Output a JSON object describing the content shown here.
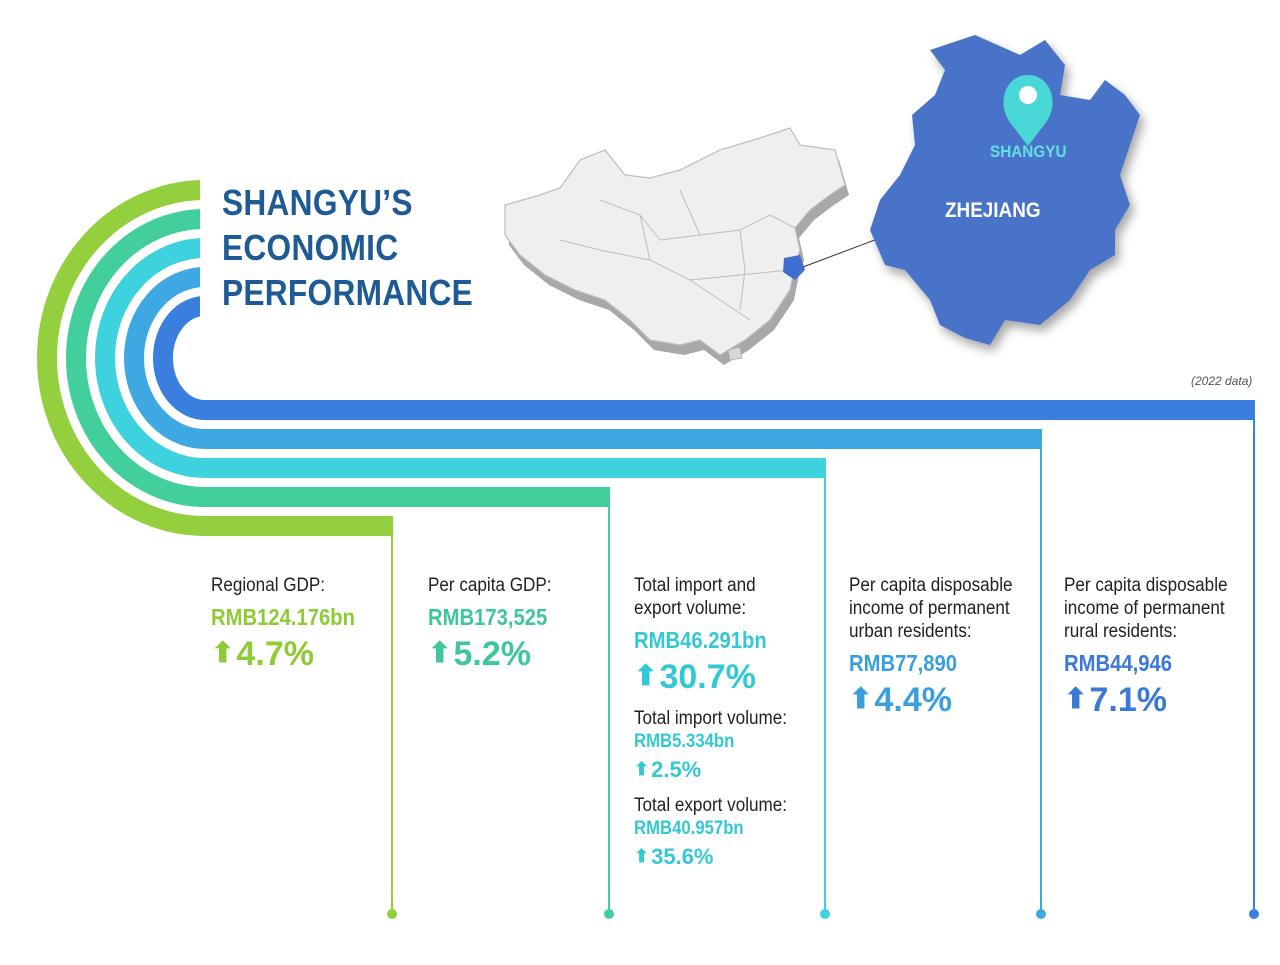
{
  "title": [
    "SHANGYU’S",
    "ECONOMIC",
    "PERFORMANCE"
  ],
  "note": "(2022 data)",
  "map": {
    "province_label": "ZHEJIANG",
    "city_label": "SHANGYU"
  },
  "colors": {
    "green": "#94cf3d",
    "teal": "#42cf9c",
    "cyan": "#3ed2de",
    "sky": "#3ea8e2",
    "blue": "#3a7fdd",
    "title": "#1d5a96",
    "zhejiang": "#4a73c8",
    "pin": "#4ad7d7"
  },
  "stats": [
    {
      "label": [
        "Regional GDP:"
      ],
      "value": "RMB124.176bn",
      "change": "4.7%",
      "color": "#8fcb36"
    },
    {
      "label": [
        "Per capita GDP:"
      ],
      "value": "RMB173,525",
      "change": "5.2%",
      "color": "#3ec79a"
    },
    {
      "label": [
        "Total import and",
        "export volume:"
      ],
      "value": "RMB46.291bn",
      "change": "30.7%",
      "color": "#33c8d6",
      "sub": [
        {
          "label": "Total import volume:",
          "value": "RMB5.334bn",
          "change": "2.5%"
        },
        {
          "label": "Total export volume:",
          "value": "RMB40.957bn",
          "change": "35.6%"
        }
      ]
    },
    {
      "label": [
        "Per capita disposable",
        "income of permanent",
        "urban residents:"
      ],
      "value": "RMB77,890",
      "change": "4.4%",
      "color": "#3a9fde"
    },
    {
      "label": [
        "Per capita disposable",
        "income of permanent",
        "rural residents:"
      ],
      "value": "RMB44,946",
      "change": "7.1%",
      "color": "#3a79d8"
    }
  ]
}
